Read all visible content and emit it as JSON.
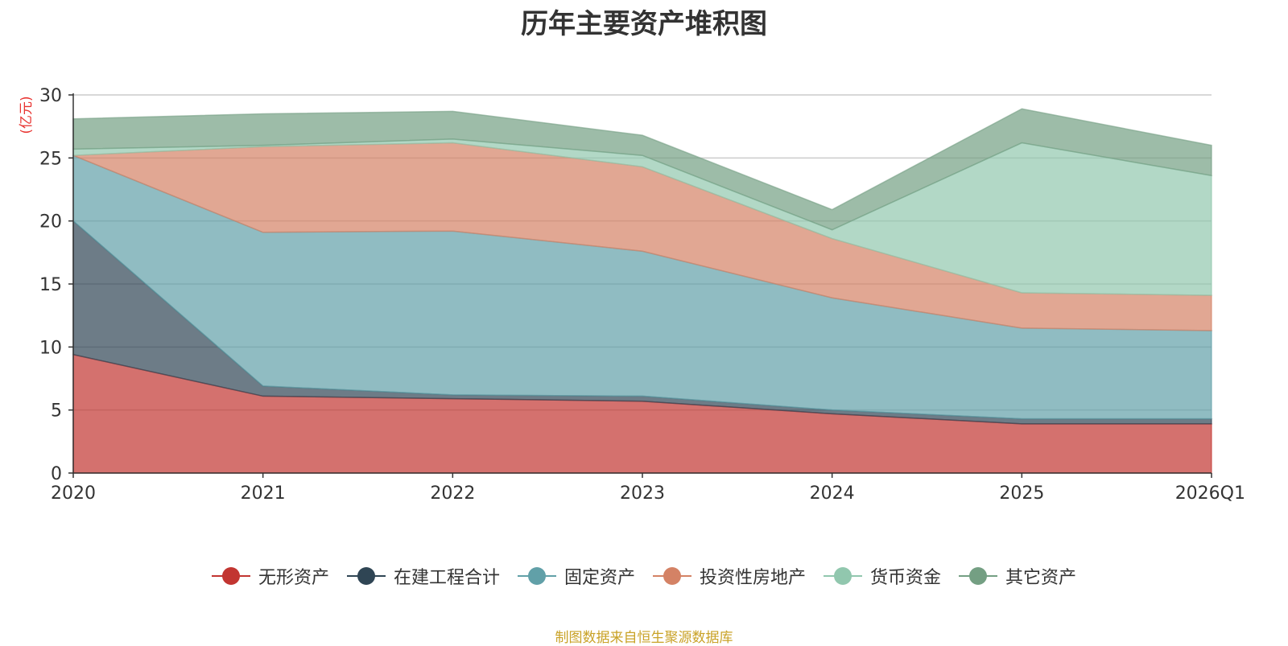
{
  "chart_data": {
    "type": "area",
    "stacked": true,
    "title": "历年主要资产堆积图",
    "ylabel": "亿元",
    "ylim": [
      0,
      30
    ],
    "yticks": [
      0,
      5,
      10,
      15,
      20,
      25,
      30
    ],
    "categories": [
      "2020",
      "2021",
      "2022",
      "2023",
      "2024",
      "2025",
      "2026Q1"
    ],
    "grid": true,
    "legend_position": "bottom",
    "series": [
      {
        "name": "无形资产",
        "color": "#c23531",
        "values": [
          9.4,
          6.1,
          5.9,
          5.7,
          4.7,
          3.9,
          3.9
        ]
      },
      {
        "name": "在建工程合计",
        "color": "#2f4554",
        "values": [
          10.6,
          0.8,
          0.3,
          0.4,
          0.3,
          0.4,
          0.4
        ]
      },
      {
        "name": "固定资产",
        "color": "#61a0a8",
        "values": [
          5.2,
          12.2,
          13.0,
          11.5,
          8.9,
          7.2,
          7.0
        ]
      },
      {
        "name": "投资性房地产",
        "color": "#d48265",
        "values": [
          0.0,
          6.8,
          7.0,
          6.7,
          4.7,
          2.8,
          2.8
        ]
      },
      {
        "name": "货币资金",
        "color": "#91c7ae",
        "values": [
          0.5,
          0.1,
          0.3,
          0.9,
          0.7,
          11.9,
          9.5
        ]
      },
      {
        "name": "其它资产",
        "color": "#749f83",
        "values": [
          2.4,
          2.5,
          2.2,
          1.6,
          1.6,
          2.7,
          2.4
        ]
      }
    ]
  },
  "footer": {
    "source": "制图数据来自恒生聚源数据库"
  }
}
